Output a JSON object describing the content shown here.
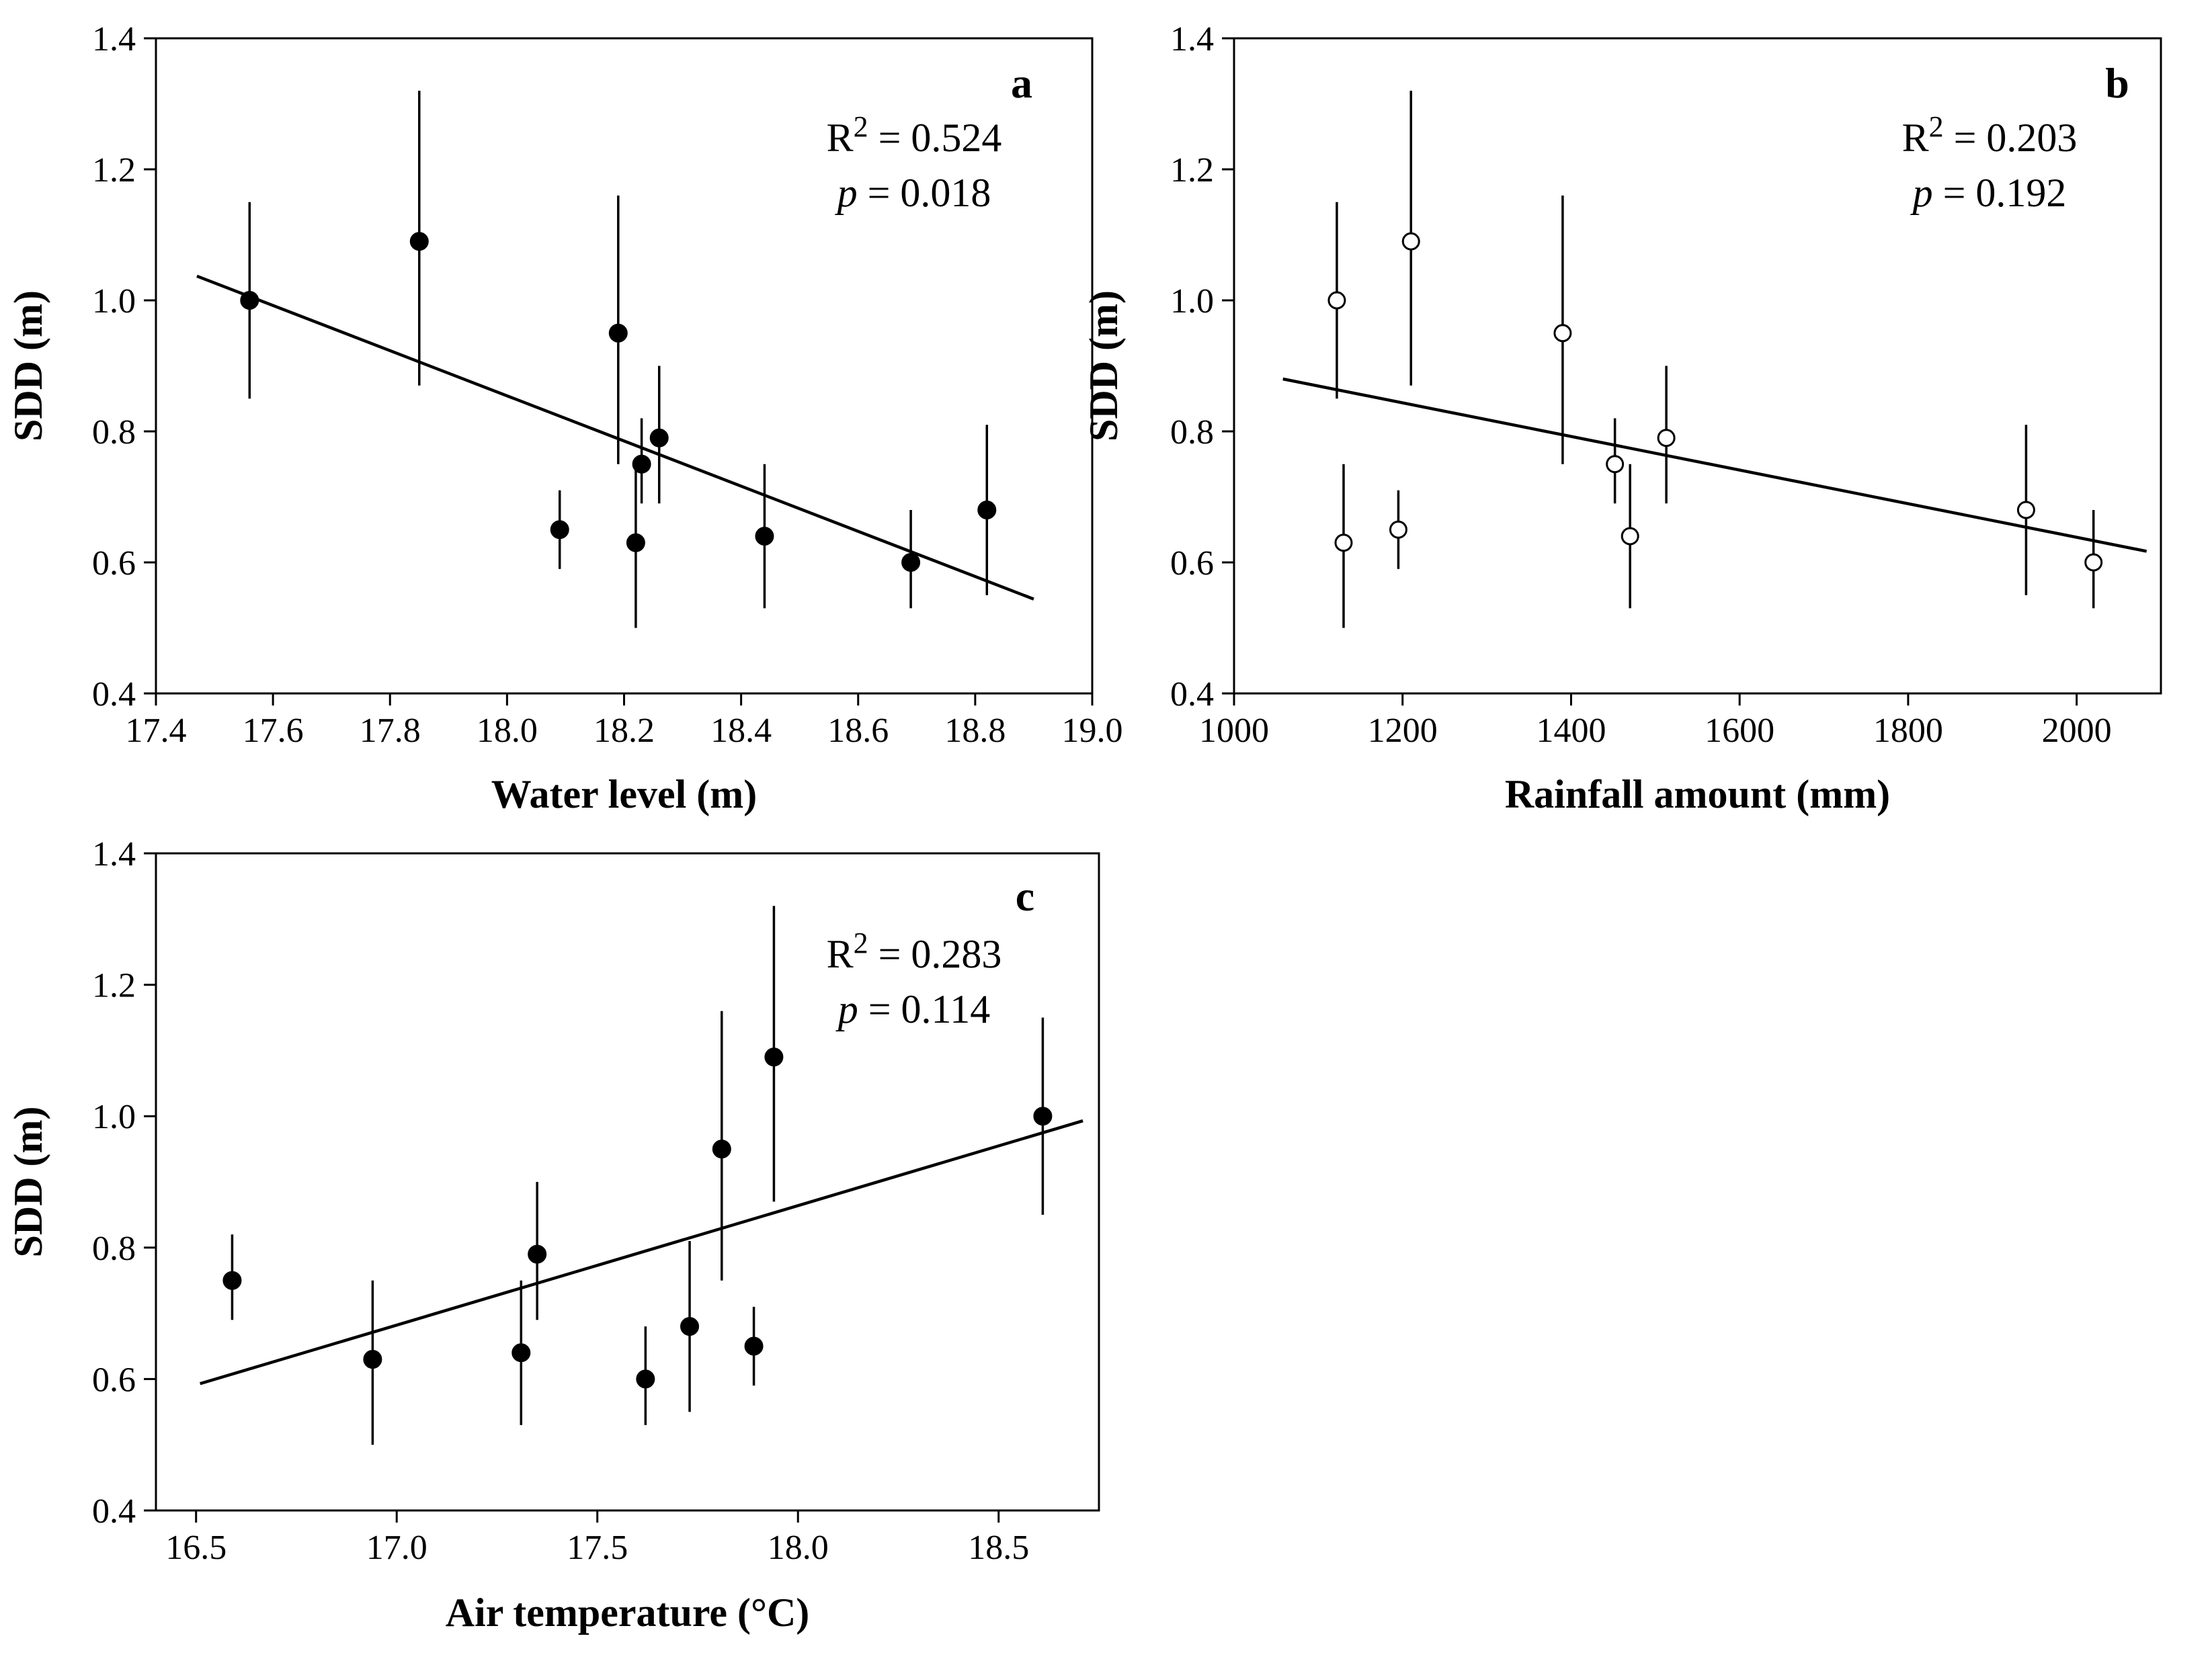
{
  "chart_data": [
    {
      "id": "a",
      "type": "scatter",
      "panel_label": "a",
      "xlabel": "Water level (m)",
      "ylabel": "SDD (m)",
      "xlim": [
        17.4,
        19.0
      ],
      "ylim": [
        0.4,
        1.4
      ],
      "xticks": [
        17.4,
        17.6,
        17.8,
        18.0,
        18.2,
        18.4,
        18.6,
        18.8,
        19.0
      ],
      "xtick_labels": [
        "17.4",
        "17.6",
        "17.8",
        "18.0",
        "18.2",
        "18.4",
        "18.6",
        "18.8",
        "19.0"
      ],
      "yticks": [
        0.4,
        0.6,
        0.8,
        1.0,
        1.2,
        1.4
      ],
      "ytick_labels": [
        "0.4",
        "0.6",
        "0.8",
        "1.0",
        "1.2",
        "1.4"
      ],
      "marker": "filled",
      "points": [
        {
          "x": 17.56,
          "y": 1.0,
          "err_low": 0.85,
          "err_high": 1.15
        },
        {
          "x": 17.85,
          "y": 1.09,
          "err_low": 0.87,
          "err_high": 1.32
        },
        {
          "x": 18.09,
          "y": 0.65,
          "err_low": 0.59,
          "err_high": 0.71
        },
        {
          "x": 18.19,
          "y": 0.95,
          "err_low": 0.75,
          "err_high": 1.16
        },
        {
          "x": 18.22,
          "y": 0.63,
          "err_low": 0.5,
          "err_high": 0.75
        },
        {
          "x": 18.23,
          "y": 0.75,
          "err_low": 0.69,
          "err_high": 0.82
        },
        {
          "x": 18.26,
          "y": 0.79,
          "err_low": 0.69,
          "err_high": 0.9
        },
        {
          "x": 18.44,
          "y": 0.64,
          "err_low": 0.53,
          "err_high": 0.75
        },
        {
          "x": 18.69,
          "y": 0.6,
          "err_low": 0.53,
          "err_high": 0.68
        },
        {
          "x": 18.82,
          "y": 0.68,
          "err_low": 0.55,
          "err_high": 0.81
        }
      ],
      "fit": {
        "x": [
          17.47,
          18.9
        ],
        "y": [
          1.037,
          0.544
        ]
      },
      "r2_prefix": "R",
      "r2_sup": "2",
      "r2_value": " = 0.524",
      "p_label": "p",
      "p_value": " = 0.018"
    },
    {
      "id": "b",
      "type": "scatter",
      "panel_label": "b",
      "xlabel": "Rainfall amount (mm)",
      "ylabel": "SDD (m)",
      "xlim": [
        1000,
        2100
      ],
      "ylim": [
        0.4,
        1.4
      ],
      "xticks": [
        1000,
        1200,
        1400,
        1600,
        1800,
        2000
      ],
      "xtick_labels": [
        "1000",
        "1200",
        "1400",
        "1600",
        "1800",
        "2000"
      ],
      "yticks": [
        0.4,
        0.6,
        0.8,
        1.0,
        1.2,
        1.4
      ],
      "ytick_labels": [
        "0.4",
        "0.6",
        "0.8",
        "1.0",
        "1.2",
        "1.4"
      ],
      "marker": "open",
      "points": [
        {
          "x": 1122,
          "y": 1.0,
          "err_low": 0.85,
          "err_high": 1.15
        },
        {
          "x": 1130,
          "y": 0.63,
          "err_low": 0.5,
          "err_high": 0.75
        },
        {
          "x": 1195,
          "y": 0.65,
          "err_low": 0.59,
          "err_high": 0.71
        },
        {
          "x": 1210,
          "y": 1.09,
          "err_low": 0.87,
          "err_high": 1.32
        },
        {
          "x": 1390,
          "y": 0.95,
          "err_low": 0.75,
          "err_high": 1.16
        },
        {
          "x": 1452,
          "y": 0.75,
          "err_low": 0.69,
          "err_high": 0.82
        },
        {
          "x": 1470,
          "y": 0.64,
          "err_low": 0.53,
          "err_high": 0.75
        },
        {
          "x": 1513,
          "y": 0.79,
          "err_low": 0.69,
          "err_high": 0.9
        },
        {
          "x": 1940,
          "y": 0.68,
          "err_low": 0.55,
          "err_high": 0.81
        },
        {
          "x": 2020,
          "y": 0.6,
          "err_low": 0.53,
          "err_high": 0.68
        }
      ],
      "fit": {
        "x": [
          1058,
          2083
        ],
        "y": [
          0.88,
          0.617
        ]
      },
      "r2_prefix": "R",
      "r2_sup": "2",
      "r2_value": " = 0.203",
      "p_label": "p",
      "p_value": " = 0.192"
    },
    {
      "id": "c",
      "type": "scatter",
      "panel_label": "c",
      "xlabel": "Air temperature (°C)",
      "ylabel": "SDD (m)",
      "xlim": [
        16.4,
        18.75
      ],
      "ylim": [
        0.4,
        1.4
      ],
      "xticks": [
        16.5,
        17.0,
        17.5,
        18.0,
        18.5
      ],
      "xtick_labels": [
        "16.5",
        "17.0",
        "17.5",
        "18.0",
        "18.5"
      ],
      "yticks": [
        0.4,
        0.6,
        0.8,
        1.0,
        1.2,
        1.4
      ],
      "ytick_labels": [
        "0.4",
        "0.6",
        "0.8",
        "1.0",
        "1.2",
        "1.4"
      ],
      "marker": "filled",
      "points": [
        {
          "x": 16.59,
          "y": 0.75,
          "err_low": 0.69,
          "err_high": 0.82
        },
        {
          "x": 16.94,
          "y": 0.63,
          "err_low": 0.5,
          "err_high": 0.75
        },
        {
          "x": 17.31,
          "y": 0.64,
          "err_low": 0.53,
          "err_high": 0.75
        },
        {
          "x": 17.35,
          "y": 0.79,
          "err_low": 0.69,
          "err_high": 0.9
        },
        {
          "x": 17.62,
          "y": 0.6,
          "err_low": 0.53,
          "err_high": 0.68
        },
        {
          "x": 17.73,
          "y": 0.68,
          "err_low": 0.55,
          "err_high": 0.81
        },
        {
          "x": 17.81,
          "y": 0.95,
          "err_low": 0.75,
          "err_high": 1.16
        },
        {
          "x": 17.89,
          "y": 0.65,
          "err_low": 0.59,
          "err_high": 0.71
        },
        {
          "x": 17.94,
          "y": 1.09,
          "err_low": 0.87,
          "err_high": 1.32
        },
        {
          "x": 18.61,
          "y": 1.0,
          "err_low": 0.85,
          "err_high": 1.15
        }
      ],
      "fit": {
        "x": [
          16.51,
          18.71
        ],
        "y": [
          0.593,
          0.993
        ]
      },
      "r2_prefix": "R",
      "r2_sup": "2",
      "r2_value": " = 0.283",
      "p_label": "p",
      "p_value": " = 0.114"
    }
  ]
}
